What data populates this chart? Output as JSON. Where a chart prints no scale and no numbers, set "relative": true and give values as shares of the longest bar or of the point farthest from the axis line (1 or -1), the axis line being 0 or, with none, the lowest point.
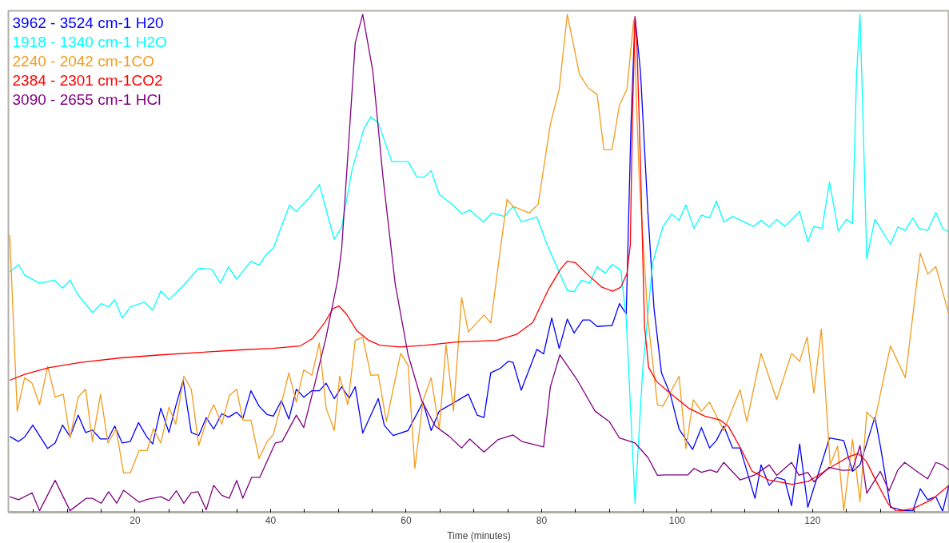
{
  "chart_data": {
    "type": "line",
    "relative": true,
    "xlabel": "Time (minutes)",
    "xlim": [
      1.3,
      140.2
    ],
    "xticks": [
      {
        "value": 5,
        "label": null
      },
      {
        "value": 10,
        "label": null
      },
      {
        "value": 15,
        "label": null
      },
      20,
      {
        "value": 25,
        "label": null
      },
      {
        "value": 30,
        "label": null
      },
      {
        "value": 35,
        "label": null
      },
      40,
      {
        "value": 45,
        "label": null
      },
      {
        "value": 50,
        "label": null
      },
      {
        "value": 55,
        "label": null
      },
      60,
      {
        "value": 65,
        "label": null
      },
      {
        "value": 70,
        "label": null
      },
      {
        "value": 75,
        "label": null
      },
      80,
      {
        "value": 85,
        "label": null
      },
      {
        "value": 90,
        "label": null
      },
      {
        "value": 95,
        "label": null
      },
      100,
      {
        "value": 105,
        "label": null
      },
      {
        "value": 110,
        "label": null
      },
      {
        "value": 115,
        "label": null
      },
      120,
      {
        "value": 125,
        "label": null
      },
      {
        "value": 130,
        "label": null
      },
      {
        "value": 135,
        "label": null
      }
    ],
    "legend": "top left",
    "grid": false,
    "marker": "none",
    "line_style": "solid",
    "series": [
      {
        "name": "3962 - 3524 cm-1 H20",
        "color": "#0000ff",
        "x": [
          1.5,
          2.8,
          3.7,
          4.9,
          7.1,
          8.2,
          9.3,
          10.4,
          11.6,
          12.7,
          13.7,
          14.9,
          16.0,
          17.0,
          18.1,
          19.3,
          20.5,
          21.7,
          22.6,
          23.8,
          25.0,
          26.0,
          27.1,
          28.3,
          29.4,
          30.5,
          31.6,
          32.8,
          33.8,
          35.0,
          35.9,
          37.1,
          38.3,
          39.5,
          40.4,
          41.6,
          42.7,
          43.8,
          44.9,
          46.1,
          47.2,
          48.2,
          49.4,
          50.5,
          51.6,
          52.5,
          53.6,
          55.9,
          56.8,
          58.1,
          60.3,
          62.5,
          63.7,
          64.9,
          69.2,
          70.5,
          71.5,
          72.5,
          73.8,
          75.1,
          75.8,
          77.0,
          79.3,
          80.3,
          81.5,
          82.6,
          83.8,
          84.8,
          86.1,
          87.1,
          88.2,
          90.4,
          91.5,
          92.5,
          93.2,
          93.8,
          94.6,
          95.7,
          96.6,
          97.7,
          99.0,
          100.3,
          102.3,
          103.6,
          104.8,
          105.8,
          106.9,
          108.2,
          109.3,
          111.5,
          112.4,
          113.6,
          114.7,
          115.9,
          116.9,
          118.1,
          119.3,
          122.5,
          124.6,
          125.9,
          127.0,
          129.2,
          130.0,
          131.5,
          133.6,
          134.8,
          135.9,
          137.0,
          138.2,
          139.2,
          140.1
        ],
        "values": [
          0.152,
          0.142,
          0.151,
          0.175,
          0.128,
          0.139,
          0.175,
          0.152,
          0.195,
          0.16,
          0.165,
          0.147,
          0.147,
          0.173,
          0.139,
          0.142,
          0.18,
          0.152,
          0.137,
          0.209,
          0.16,
          0.213,
          0.265,
          0.16,
          0.154,
          0.19,
          0.167,
          0.198,
          0.191,
          0.201,
          0.188,
          0.244,
          0.213,
          0.196,
          0.193,
          0.224,
          0.187,
          0.247,
          0.231,
          0.244,
          0.244,
          0.259,
          0.228,
          0.252,
          0.229,
          0.252,
          0.159,
          0.228,
          0.174,
          0.154,
          0.164,
          0.221,
          0.164,
          0.203,
          0.237,
          0.195,
          0.19,
          0.28,
          0.288,
          0.303,
          0.301,
          0.245,
          0.327,
          0.318,
          0.39,
          0.329,
          0.388,
          0.36,
          0.386,
          0.386,
          0.373,
          0.375,
          0.419,
          0.398,
          0.779,
          0.995,
          0.885,
          0.601,
          0.409,
          0.28,
          0.237,
          0.167,
          0.126,
          0.17,
          0.129,
          0.144,
          0.173,
          0.129,
          0.129,
          0.028,
          0.095,
          0.054,
          0.07,
          0.065,
          0.013,
          0.137,
          0.01,
          0.149,
          0.144,
          0.082,
          0.095,
          0.191,
          0.134,
          0.01,
          0.003,
          0.003,
          0.047,
          0.025,
          0.031,
          0.002,
          0.052
        ]
      },
      {
        "name": "1918 - 1340 cm-1 H2O",
        "color": "#00ffff",
        "x": [
          1.5,
          2.8,
          3.7,
          5.9,
          8.1,
          9.3,
          10.4,
          11.5,
          13.7,
          15.0,
          16.1,
          17.0,
          18.1,
          19.3,
          21.4,
          22.6,
          23.8,
          25.0,
          27.1,
          29.4,
          31.3,
          32.6,
          33.8,
          35.0,
          37.1,
          38.3,
          39.5,
          40.4,
          42.8,
          43.8,
          45.8,
          47.2,
          49.4,
          50.5,
          52.0,
          53.8,
          54.8,
          55.9,
          57.9,
          60.3,
          61.6,
          62.7,
          63.7,
          64.9,
          67.1,
          68.2,
          69.4,
          71.4,
          72.7,
          74.5,
          75.8,
          77.0,
          79.3,
          80.8,
          83.8,
          84.8,
          85.9,
          87.1,
          88.2,
          89.4,
          90.4,
          91.7,
          92.5,
          93.8,
          94.9,
          96.4,
          97.9,
          99.2,
          100.3,
          101.3,
          102.5,
          103.6,
          104.8,
          105.8,
          106.9,
          108.2,
          111.3,
          112.4,
          113.6,
          114.7,
          115.9,
          118.1,
          119.3,
          120.2,
          121.4,
          122.5,
          123.8,
          125.0,
          125.9,
          126.5,
          127.0,
          127.4,
          128.0,
          129.2,
          131.5,
          132.6,
          133.7,
          134.8,
          135.7,
          137.0,
          138.2,
          139.2,
          140.1
        ],
        "values": [
          0.483,
          0.497,
          0.476,
          0.46,
          0.466,
          0.45,
          0.466,
          0.438,
          0.401,
          0.419,
          0.412,
          0.427,
          0.39,
          0.412,
          0.422,
          0.406,
          0.444,
          0.427,
          0.455,
          0.49,
          0.488,
          0.46,
          0.493,
          0.468,
          0.504,
          0.496,
          0.52,
          0.53,
          0.617,
          0.604,
          0.633,
          0.658,
          0.548,
          0.573,
          0.686,
          0.771,
          0.794,
          0.782,
          0.704,
          0.704,
          0.673,
          0.673,
          0.686,
          0.638,
          0.615,
          0.599,
          0.607,
          0.583,
          0.601,
          0.594,
          0.614,
          0.583,
          0.593,
          0.538,
          0.445,
          0.443,
          0.466,
          0.46,
          0.493,
          0.48,
          0.498,
          0.486,
          0.388,
          0.018,
          0.28,
          0.501,
          0.573,
          0.599,
          0.586,
          0.617,
          0.57,
          0.597,
          0.591,
          0.625,
          0.583,
          0.594,
          0.574,
          0.586,
          0.573,
          0.588,
          0.574,
          0.604,
          0.543,
          0.574,
          0.57,
          0.663,
          0.565,
          0.588,
          0.58,
          0.879,
          1.0,
          0.815,
          0.509,
          0.588,
          0.538,
          0.573,
          0.566,
          0.591,
          0.57,
          0.566,
          0.602,
          0.57,
          0.563
        ]
      },
      {
        "name": "2240 - 2042 cm-1CO",
        "color": "#f29b1c",
        "x": [
          1.5,
          2.6,
          3.7,
          4.8,
          5.9,
          7.1,
          8.2,
          9.4,
          10.4,
          11.6,
          12.7,
          13.7,
          14.9,
          16.0,
          17.2,
          18.3,
          19.3,
          20.6,
          21.8,
          22.7,
          23.8,
          25.0,
          26.0,
          27.2,
          28.3,
          29.4,
          30.5,
          31.6,
          32.8,
          33.9,
          35.0,
          35.9,
          37.1,
          38.3,
          39.5,
          40.4,
          41.5,
          42.7,
          43.8,
          44.9,
          46.1,
          47.2,
          48.2,
          49.4,
          50.2,
          51.4,
          52.5,
          53.6,
          54.8,
          55.9,
          57.1,
          59.2,
          60.3,
          61.3,
          62.5,
          63.7,
          64.9,
          65.9,
          67.0,
          68.2,
          69.2,
          71.5,
          72.5,
          73.8,
          74.9,
          75.8,
          78.2,
          79.5,
          81.3,
          82.6,
          83.8,
          85.6,
          86.9,
          88.2,
          89.2,
          90.4,
          91.5,
          92.6,
          93.6,
          94.4,
          95.7,
          97.1,
          97.9,
          100.3,
          101.3,
          102.4,
          103.6,
          104.8,
          106.9,
          109.3,
          110.3,
          112.4,
          114.7,
          116.9,
          118.1,
          119.2,
          120.2,
          121.3,
          122.6,
          123.7,
          124.6,
          125.9,
          127.0,
          128.0,
          129.2,
          131.5,
          133.7,
          135.9,
          137.0,
          138.2,
          140.1
        ],
        "values": [
          0.556,
          0.203,
          0.27,
          0.259,
          0.216,
          0.293,
          0.231,
          0.237,
          0.149,
          0.231,
          0.247,
          0.142,
          0.237,
          0.139,
          0.167,
          0.079,
          0.079,
          0.124,
          0.124,
          0.168,
          0.139,
          0.211,
          0.177,
          0.273,
          0.247,
          0.134,
          0.182,
          0.216,
          0.177,
          0.234,
          0.247,
          0.185,
          0.185,
          0.108,
          0.142,
          0.156,
          0.213,
          0.28,
          0.221,
          0.286,
          0.275,
          0.34,
          0.209,
          0.164,
          0.273,
          0.216,
          0.345,
          0.352,
          0.275,
          0.276,
          0.182,
          0.319,
          0.295,
          0.088,
          0.224,
          0.27,
          0.167,
          0.337,
          0.203,
          0.431,
          0.362,
          0.396,
          0.38,
          0.516,
          0.628,
          0.614,
          0.601,
          0.619,
          0.779,
          0.849,
          1.0,
          0.879,
          0.852,
          0.839,
          0.728,
          0.728,
          0.818,
          0.849,
          0.988,
          0.673,
          0.388,
          0.216,
          0.213,
          0.273,
          0.128,
          0.226,
          0.203,
          0.221,
          0.164,
          0.246,
          0.182,
          0.319,
          0.226,
          0.319,
          0.303,
          0.352,
          0.239,
          0.368,
          0.095,
          0.133,
          0.003,
          0.146,
          0.021,
          0.201,
          0.185,
          0.334,
          0.27,
          0.52,
          0.478,
          0.493,
          0.398
        ]
      },
      {
        "name": "2384 - 2301 cm-1CO2",
        "color": "#ff0000",
        "x": [
          1.5,
          3.7,
          7.2,
          12.0,
          17.9,
          23.8,
          29.7,
          35.6,
          40.3,
          44.4,
          46.2,
          48.0,
          49.2,
          50.1,
          51.2,
          52.7,
          54.5,
          56.2,
          59.2,
          62.7,
          67.5,
          73.4,
          76.3,
          78.7,
          81.0,
          82.8,
          83.8,
          85.0,
          86.9,
          88.9,
          90.5,
          91.7,
          92.6,
          93.1,
          93.4,
          93.8,
          94.1,
          94.6,
          95.2,
          95.8,
          97.0,
          98.7,
          101.7,
          104.1,
          106.4,
          107.6,
          109.4,
          111.1,
          113.5,
          117.0,
          119.4,
          122.9,
          125.3,
          126.7,
          127.9,
          129.4,
          131.2,
          132.4,
          134.8,
          137.7,
          140.1
        ],
        "values": [
          0.265,
          0.277,
          0.29,
          0.301,
          0.31,
          0.316,
          0.321,
          0.326,
          0.329,
          0.334,
          0.349,
          0.381,
          0.409,
          0.414,
          0.398,
          0.365,
          0.345,
          0.335,
          0.332,
          0.335,
          0.342,
          0.345,
          0.357,
          0.381,
          0.447,
          0.488,
          0.504,
          0.501,
          0.476,
          0.452,
          0.444,
          0.452,
          0.479,
          0.537,
          0.782,
          0.995,
          0.93,
          0.7,
          0.373,
          0.291,
          0.262,
          0.242,
          0.209,
          0.193,
          0.185,
          0.172,
          0.128,
          0.082,
          0.065,
          0.056,
          0.062,
          0.092,
          0.111,
          0.118,
          0.103,
          0.062,
          0.016,
          0.002,
          0.007,
          0.026,
          0.054
        ]
      },
      {
        "name": "3090 - 2655 cm-1 HCl",
        "color": "#800080",
        "x": [
          1.5,
          2.8,
          4.8,
          5.9,
          8.2,
          10.4,
          12.8,
          13.7,
          15.0,
          16.1,
          17.3,
          18.3,
          20.6,
          21.8,
          23.8,
          25.0,
          26.1,
          27.2,
          28.3,
          29.3,
          30.5,
          31.6,
          32.8,
          33.9,
          35.0,
          35.9,
          37.2,
          38.4,
          40.7,
          41.7,
          43.8,
          44.9,
          46.3,
          48.2,
          49.9,
          50.5,
          52.5,
          53.6,
          55.1,
          56.6,
          58.4,
          60.3,
          62.3,
          64.3,
          66.4,
          68.2,
          69.4,
          71.5,
          73.6,
          75.8,
          77.1,
          80.3,
          81.3,
          82.7,
          85.2,
          87.9,
          90.0,
          91.5,
          93.8,
          95.7,
          97.1,
          98.2,
          100.0,
          101.6,
          102.5,
          103.6,
          104.9,
          105.9,
          106.9,
          109.3,
          111.5,
          113.6,
          114.7,
          116.9,
          118.0,
          119.3,
          120.2,
          122.4,
          124.4,
          125.9,
          127.0,
          128.0,
          130.0,
          131.3,
          132.6,
          133.6,
          135.7,
          137.0,
          138.2,
          139.2,
          140.1
        ],
        "values": [
          0.031,
          0.025,
          0.039,
          0.003,
          0.064,
          0.003,
          0.028,
          0.028,
          0.018,
          0.041,
          0.018,
          0.044,
          0.02,
          0.026,
          0.031,
          0.023,
          0.043,
          0.018,
          0.039,
          0.041,
          0.005,
          0.054,
          0.034,
          0.028,
          0.064,
          0.028,
          0.07,
          0.07,
          0.139,
          0.142,
          0.195,
          0.17,
          0.245,
          0.352,
          0.466,
          0.53,
          0.943,
          1.0,
          0.885,
          0.672,
          0.458,
          0.316,
          0.224,
          0.173,
          0.152,
          0.129,
          0.147,
          0.121,
          0.146,
          0.155,
          0.142,
          0.131,
          0.252,
          0.316,
          0.267,
          0.203,
          0.182,
          0.149,
          0.139,
          0.11,
          0.074,
          0.075,
          0.075,
          0.075,
          0.088,
          0.08,
          0.085,
          0.08,
          0.1,
          0.065,
          0.075,
          0.095,
          0.074,
          0.1,
          0.074,
          0.08,
          0.061,
          0.09,
          0.084,
          0.085,
          0.134,
          0.038,
          0.082,
          0.043,
          0.085,
          0.1,
          0.079,
          0.067,
          0.1,
          0.095,
          0.085
        ]
      }
    ]
  }
}
